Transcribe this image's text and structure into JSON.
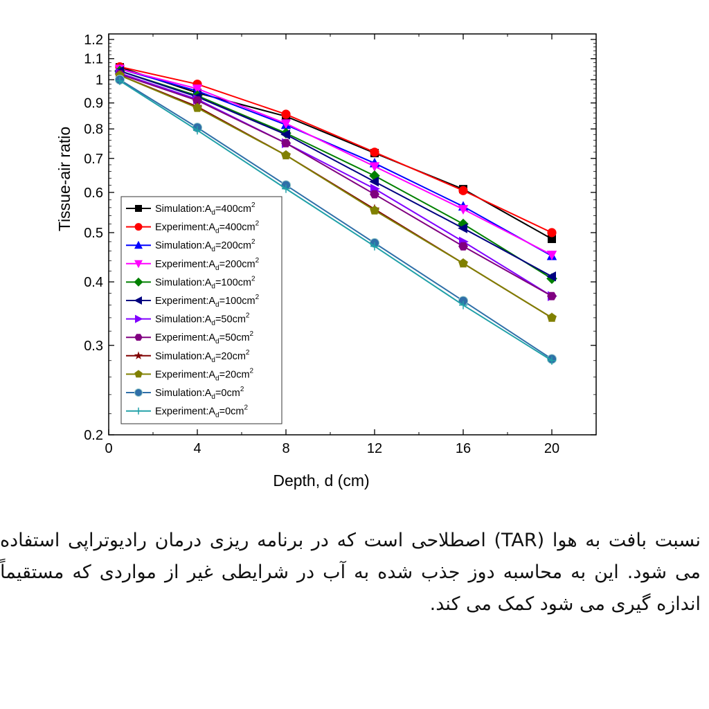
{
  "chart_data": {
    "type": "line",
    "title": "",
    "xlabel": "Depth, d (cm)",
    "ylabel": "Tissue-air ratio",
    "xlim": [
      0,
      22
    ],
    "ylim": [
      0.2,
      1.2
    ],
    "yscale": "log",
    "x_ticks": [
      "0",
      "4",
      "8",
      "12",
      "16",
      "20"
    ],
    "y_ticks": [
      "0.2",
      "0.3",
      "0.4",
      "0.5",
      "0.6",
      "0.7",
      "0.8",
      "0.9",
      "1",
      "1.1",
      "1.2"
    ],
    "legend_position": "bottom-left",
    "x": [
      0.5,
      4,
      8,
      12,
      16,
      20
    ],
    "series": [
      {
        "name": "Simulation:A",
        "sub": "d",
        "suffix": "=400cm",
        "sup": "2",
        "color": "#000000",
        "marker": "square",
        "values": [
          1.058,
          0.942,
          0.847,
          0.717,
          0.609,
          0.486
        ]
      },
      {
        "name": "Experiment:A",
        "sub": "d",
        "suffix": "=400cm",
        "sup": "2",
        "color": "#ff0000",
        "marker": "circle",
        "values": [
          1.06,
          0.98,
          0.855,
          0.72,
          0.605,
          0.5
        ]
      },
      {
        "name": "Simulation:A",
        "sub": "d",
        "suffix": "=200cm",
        "sup": "2",
        "color": "#0000ff",
        "marker": "triangle-up",
        "values": [
          1.05,
          0.95,
          0.815,
          0.685,
          0.563,
          0.45
        ]
      },
      {
        "name": "Experiment:A",
        "sub": "d",
        "suffix": "=200cm",
        "sup": "2",
        "color": "#ff00ff",
        "marker": "triangle-down",
        "values": [
          1.05,
          0.96,
          0.82,
          0.675,
          0.556,
          0.452
        ]
      },
      {
        "name": "Simulation:A",
        "sub": "d",
        "suffix": "=100cm",
        "sup": "2",
        "color": "#008000",
        "marker": "diamond",
        "values": [
          1.04,
          0.93,
          0.785,
          0.647,
          0.52,
          0.406
        ]
      },
      {
        "name": "Experiment:A",
        "sub": "d",
        "suffix": "=100cm",
        "sup": "2",
        "color": "#000080",
        "marker": "triangle-left",
        "values": [
          1.04,
          0.925,
          0.78,
          0.63,
          0.51,
          0.41
        ]
      },
      {
        "name": "Simulation:A",
        "sub": "d",
        "suffix": "=50cm",
        "sup": "2",
        "color": "#8000ff",
        "marker": "triangle-right",
        "values": [
          1.03,
          0.915,
          0.75,
          0.61,
          0.48,
          0.375
        ]
      },
      {
        "name": "Experiment:A",
        "sub": "d",
        "suffix": "=50cm",
        "sup": "2",
        "color": "#800080",
        "marker": "hexagon",
        "values": [
          1.025,
          0.91,
          0.75,
          0.595,
          0.47,
          0.375
        ]
      },
      {
        "name": "Simulation:A",
        "sub": "d",
        "suffix": "=20cm",
        "sup": "2",
        "color": "#800000",
        "marker": "star",
        "values": [
          1.02,
          0.885,
          0.71,
          0.556,
          0.435,
          0.34
        ]
      },
      {
        "name": "Experiment:A",
        "sub": "d",
        "suffix": "=20cm",
        "sup": "2",
        "color": "#808000",
        "marker": "pentagon",
        "values": [
          1.02,
          0.88,
          0.71,
          0.553,
          0.435,
          0.34
        ]
      },
      {
        "name": "Simulation:A",
        "sub": "d",
        "suffix": "=0cm",
        "sup": "2",
        "color": "#2f6fa8",
        "marker": "sphere",
        "values": [
          1.0,
          0.805,
          0.62,
          0.477,
          0.367,
          0.282
        ]
      },
      {
        "name": "Experiment:A",
        "sub": "d",
        "suffix": "=0cm",
        "sup": "2",
        "color": "#20a0a8",
        "marker": "plus",
        "values": [
          0.995,
          0.795,
          0.61,
          0.47,
          0.36,
          0.28
        ]
      }
    ]
  },
  "caption": {
    "text": "نسبت بافت به هوا (TAR) اصطلاحی است که در برنامه ریزی درمان رادیوتراپی استفاده می شود. این به محاسبه دوز جذب شده به آب در شرایطی غیر از مواردی که مستقیماً اندازه گیری می شود کمک می کند."
  }
}
